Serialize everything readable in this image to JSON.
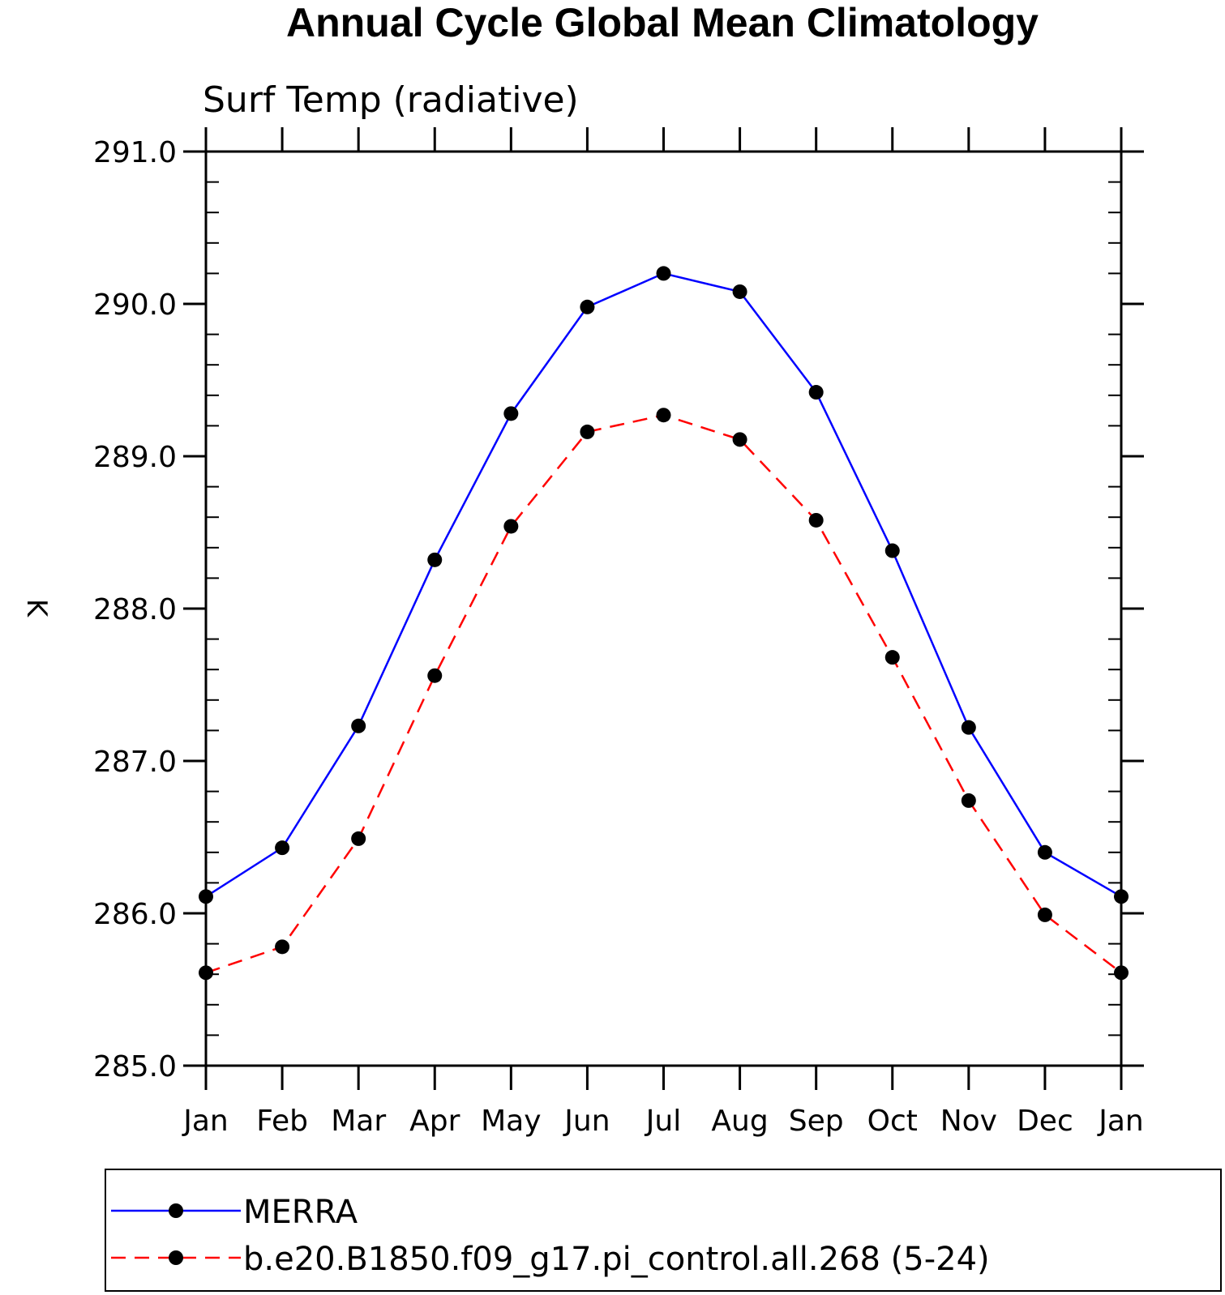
{
  "chart_data": {
    "type": "line",
    "title": "Annual Cycle Global Mean Climatology",
    "subtitle": "Surf Temp (radiative)",
    "ylabel": "K",
    "xlabel": "",
    "categories": [
      "Jan",
      "Feb",
      "Mar",
      "Apr",
      "May",
      "Jun",
      "Jul",
      "Aug",
      "Sep",
      "Oct",
      "Nov",
      "Dec",
      "Jan"
    ],
    "ylim": [
      285.0,
      291.0
    ],
    "yticks": [
      "285.0",
      "286.0",
      "287.0",
      "288.0",
      "289.0",
      "290.0",
      "291.0"
    ],
    "grid": false,
    "legend_position": "bottom",
    "series": [
      {
        "name": "MERRA",
        "color": "#0000ff",
        "style": "solid",
        "marker": "filled-circle",
        "values": [
          286.11,
          286.43,
          287.23,
          288.32,
          289.28,
          289.98,
          290.2,
          290.08,
          289.42,
          288.38,
          287.22,
          286.4,
          286.11
        ]
      },
      {
        "name": "b.e20.B1850.f09_g17.pi_control.all.268 (5-24)",
        "color": "#ff0000",
        "style": "dashed",
        "marker": "filled-circle",
        "values": [
          285.61,
          285.78,
          286.49,
          287.56,
          288.54,
          289.16,
          289.27,
          289.11,
          288.58,
          287.68,
          286.74,
          285.99,
          285.61
        ]
      }
    ]
  }
}
